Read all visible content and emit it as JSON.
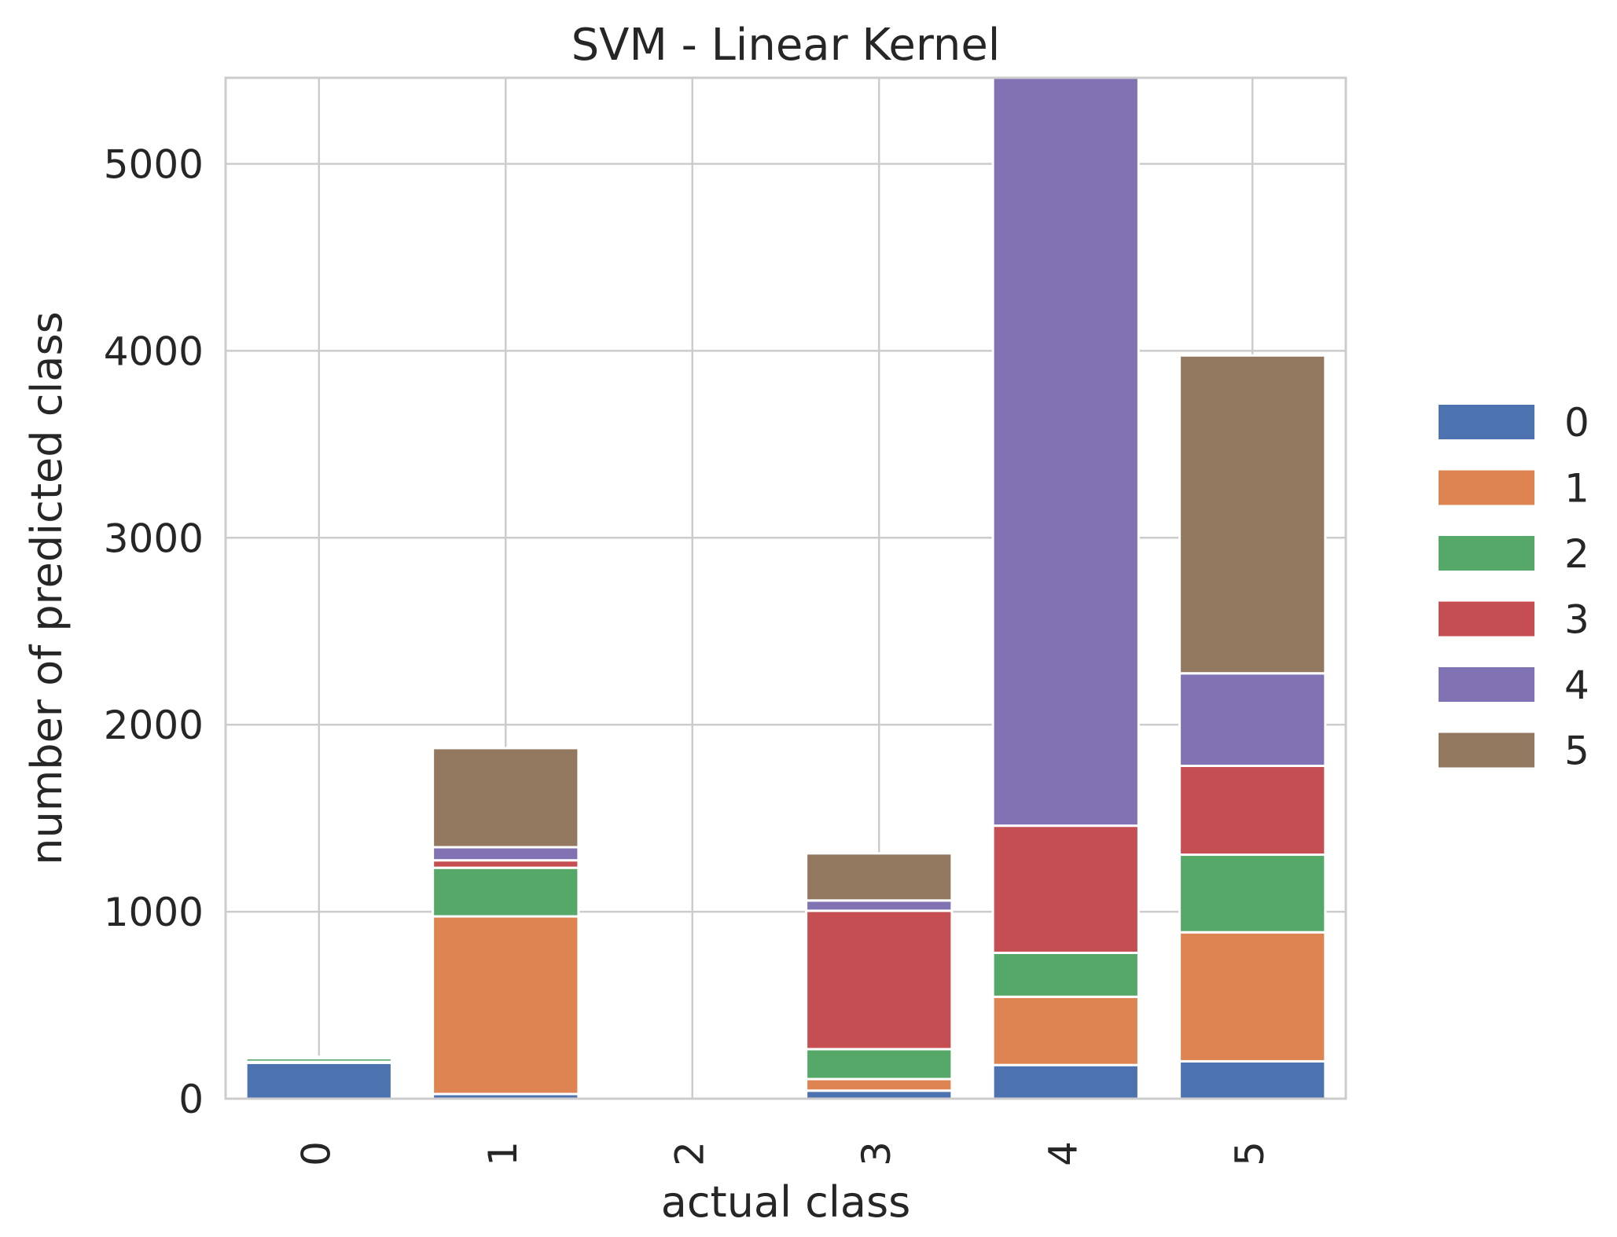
{
  "chart_data": {
    "type": "bar",
    "stacked": true,
    "title": "SVM - Linear Kernel",
    "xlabel": "actual class",
    "ylabel": "number of predicted class",
    "categories": [
      "0",
      "1",
      "2",
      "3",
      "4",
      "5"
    ],
    "ylim": [
      0,
      5460
    ],
    "yticks": [
      0,
      1000,
      2000,
      3000,
      4000,
      5000
    ],
    "grid": true,
    "legend_position": "right",
    "series": [
      {
        "name": "0",
        "color": "#4c72b0",
        "values": [
          192,
          25,
          0,
          43,
          180,
          200
        ]
      },
      {
        "name": "1",
        "color": "#dd8452",
        "values": [
          5,
          950,
          0,
          62,
          365,
          690
        ]
      },
      {
        "name": "2",
        "color": "#55a868",
        "values": [
          20,
          260,
          0,
          160,
          235,
          415
        ]
      },
      {
        "name": "3",
        "color": "#c44e52",
        "values": [
          3,
          40,
          0,
          740,
          680,
          475
        ]
      },
      {
        "name": "4",
        "color": "#8172b3",
        "values": [
          2,
          70,
          0,
          55,
          4000,
          495
        ]
      },
      {
        "name": "5",
        "color": "#937860",
        "values": [
          2,
          530,
          0,
          252,
          0,
          1700
        ]
      }
    ]
  }
}
